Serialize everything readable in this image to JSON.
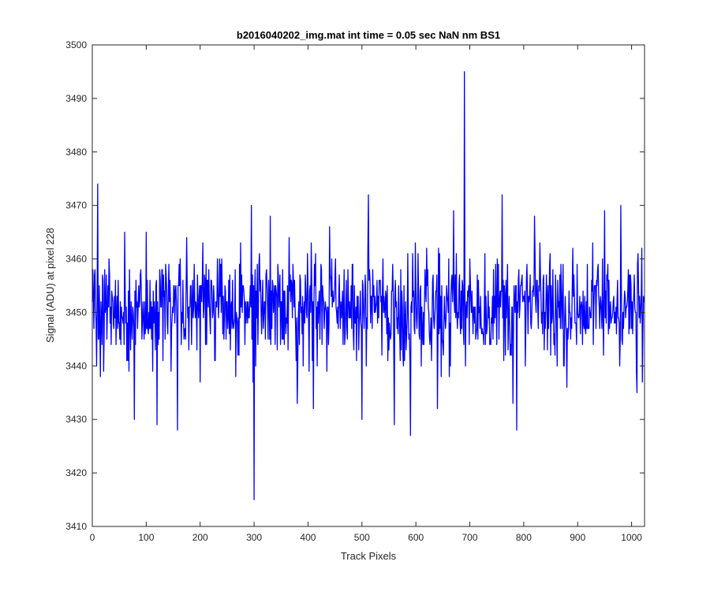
{
  "chart_data": {
    "type": "line",
    "title": "b2016040202_img.mat int time = 0.05 sec  NaN nm BS1",
    "xlabel": "Track Pixels",
    "ylabel": "Signal (ADU) at pixel 228",
    "xlim": [
      0,
      1024
    ],
    "ylim": [
      3410,
      3500
    ],
    "xticks": [
      0,
      100,
      200,
      300,
      400,
      500,
      600,
      700,
      800,
      900,
      1000
    ],
    "yticks": [
      3410,
      3420,
      3430,
      3440,
      3450,
      3460,
      3470,
      3480,
      3490,
      3500
    ],
    "grid": false,
    "legend": "none",
    "series": [
      {
        "color": "#0000ff",
        "baseline": 3451,
        "noise_amplitude": 15,
        "points_estimated": [
          [
            0,
            3452
          ],
          [
            5,
            3458
          ],
          [
            8,
            3440
          ],
          [
            10,
            3474
          ],
          [
            12,
            3445
          ],
          [
            15,
            3438
          ],
          [
            60,
            3465
          ],
          [
            78,
            3430
          ],
          [
            100,
            3465
          ],
          [
            120,
            3429
          ],
          [
            130,
            3458
          ],
          [
            158,
            3428
          ],
          [
            175,
            3464
          ],
          [
            200,
            3437
          ],
          [
            240,
            3460
          ],
          [
            280,
            3455
          ],
          [
            295,
            3470
          ],
          [
            298,
            3437
          ],
          [
            300,
            3415
          ],
          [
            303,
            3440
          ],
          [
            330,
            3468
          ],
          [
            380,
            3433
          ],
          [
            410,
            3432
          ],
          [
            440,
            3466
          ],
          [
            500,
            3430
          ],
          [
            512,
            3472
          ],
          [
            560,
            3429
          ],
          [
            590,
            3427
          ],
          [
            620,
            3462
          ],
          [
            640,
            3432
          ],
          [
            670,
            3469
          ],
          [
            690,
            3495
          ],
          [
            692,
            3440
          ],
          [
            700,
            3460
          ],
          [
            760,
            3472
          ],
          [
            780,
            3433
          ],
          [
            787,
            3428
          ],
          [
            820,
            3468
          ],
          [
            880,
            3436
          ],
          [
            950,
            3469
          ],
          [
            980,
            3470
          ],
          [
            1010,
            3435
          ],
          [
            1020,
            3437
          ],
          [
            1024,
            3452
          ]
        ]
      }
    ]
  }
}
